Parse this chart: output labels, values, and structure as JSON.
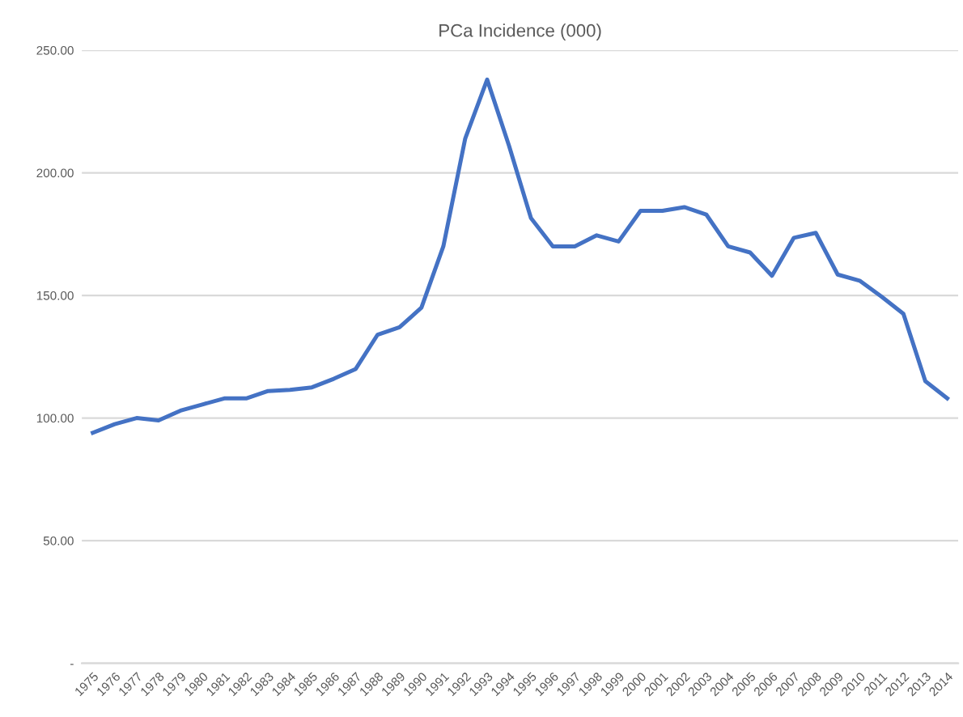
{
  "chart_data": {
    "type": "line",
    "title": "PCa Incidence (000)",
    "categories": [
      "1975",
      "1976",
      "1977",
      "1978",
      "1979",
      "1980",
      "1981",
      "1982",
      "1983",
      "1984",
      "1985",
      "1986",
      "1987",
      "1988",
      "1989",
      "1990",
      "1991",
      "1992",
      "1993",
      "1994",
      "1995",
      "1996",
      "1997",
      "1998",
      "1999",
      "2000",
      "2001",
      "2002",
      "2003",
      "2004",
      "2005",
      "2006",
      "2007",
      "2008",
      "2009",
      "2010",
      "2011",
      "2012",
      "2013",
      "2014"
    ],
    "series": [
      {
        "color": "#4472c4",
        "values": [
          94,
          97.5,
          100,
          99,
          103,
          105.5,
          108,
          108,
          111,
          111.5,
          112.5,
          116,
          120,
          134,
          137,
          145,
          170,
          214,
          238,
          211,
          181.5,
          170,
          170,
          174.5,
          172,
          184.5,
          184.5,
          186,
          183,
          170,
          167.5,
          158,
          173.5,
          175.5,
          158.5,
          156,
          149.5,
          142.5,
          115,
          108
        ]
      }
    ],
    "ylim": [
      0,
      250
    ],
    "yticks": [
      {
        "value": 0,
        "label": "-"
      },
      {
        "value": 50,
        "label": "50.00"
      },
      {
        "value": 100,
        "label": "100.00"
      },
      {
        "value": 150,
        "label": "150.00"
      },
      {
        "value": 200,
        "label": "200.00"
      },
      {
        "value": 250,
        "label": "250.00"
      }
    ],
    "grid": "y",
    "legend": false,
    "marker": "none",
    "line_style": "solid"
  }
}
